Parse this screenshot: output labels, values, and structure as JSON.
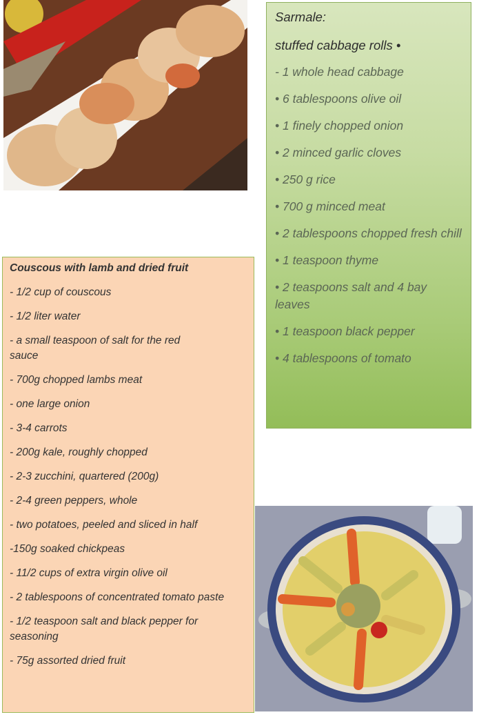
{
  "sarmale": {
    "title": "Sarmale:",
    "subtitle": "stuffed cabbage rolls •",
    "items": [
      "- 1 whole head cabbage",
      "• 6 tablespoons olive oil",
      "• 1 finely chopped onion",
      "• 2 minced garlic cloves",
      "• 250 g rice",
      "• 700 g minced meat",
      "• 2 tablespoons chopped fresh chill",
      "• 1 teaspoon thyme",
      "• 2 teaspoons salt and 4 bay leaves",
      "• 1 teaspoon black pepper",
      "• 4 tablespoons of tomato"
    ]
  },
  "couscous": {
    "title": "Couscous with lamb and dried fruit",
    "items": [
      "- 1/2 cup of couscous",
      "- 1/2 liter water",
      "- a small teaspoon of salt for the red sauce",
      "- 700g chopped lambs meat",
      "- one large onion",
      "- 3-4 carrots",
      "- 200g kale, roughly chopped",
      "- 2-3 zucchini, quartered (200g)",
      "- 2-4 green peppers, whole",
      "- two potatoes, peeled and sliced in half",
      "-150g soaked chickpeas",
      "- 11/2 cups of extra virgin olive oil",
      "- 2 tablespoons of concentrated tomato paste",
      "- 1/2 teaspoon salt and black pepper for seasoning",
      "- 75g assorted dried fruit"
    ]
  },
  "colors": {
    "green_box": "#c7dca3",
    "peach_box": "#fbd5b5",
    "border": "#9bbb59"
  }
}
